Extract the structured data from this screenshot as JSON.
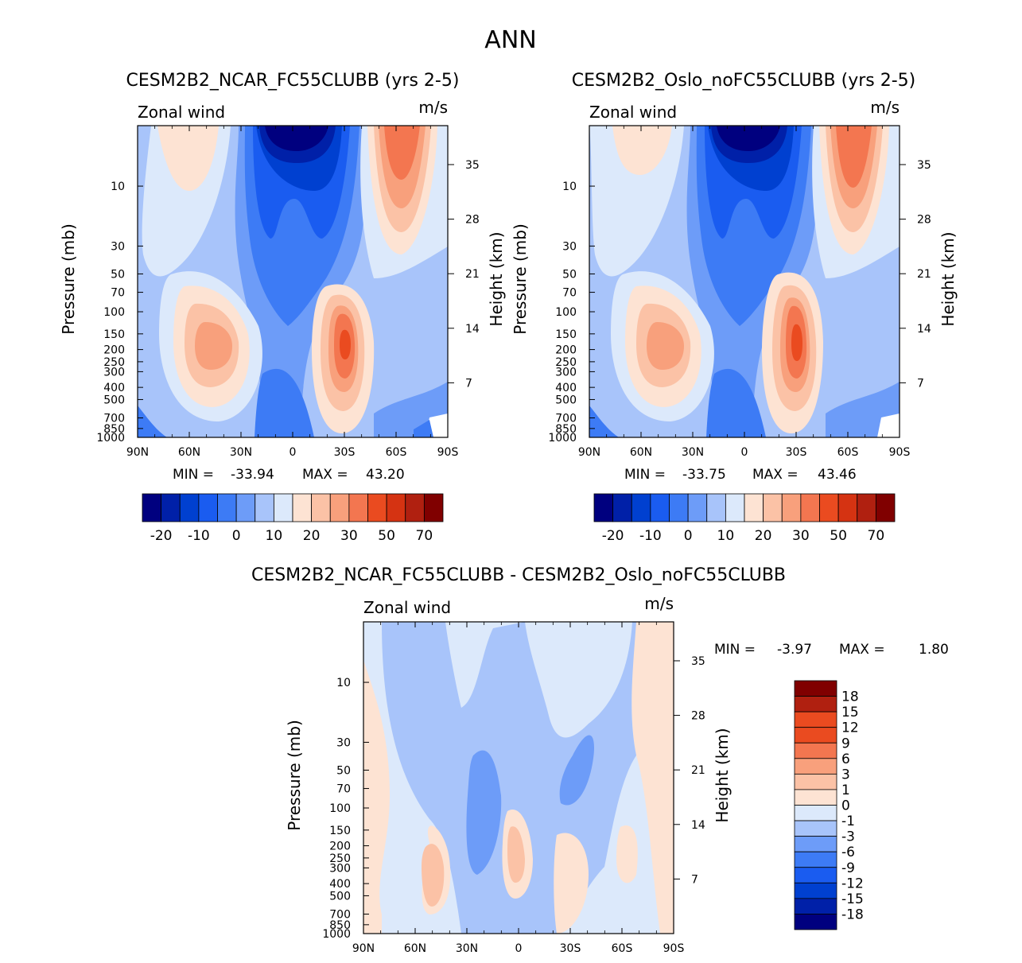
{
  "page_title": "ANN",
  "colors": {
    "main_scale": [
      "#00007f",
      "#0020a8",
      "#0040d0",
      "#1a5cf0",
      "#3d7bf5",
      "#6d9cf8",
      "#a8c4fa",
      "#dce9fb",
      "#fde3d3",
      "#fbc2a6",
      "#f8a07c",
      "#f37650",
      "#ea4b20",
      "#d53312",
      "#b02010",
      "#800000"
    ],
    "diff_scale": [
      "#00007f",
      "#0020a8",
      "#0040d0",
      "#1a5cf0",
      "#3d7bf5",
      "#6d9cf8",
      "#a8c4fa",
      "#dce9fb",
      "#fde3d3",
      "#fbc2a6",
      "#f8a07c",
      "#f37650",
      "#ea4b20",
      "#b02010",
      "#800000"
    ]
  },
  "chart_data": [
    {
      "type": "heatmap",
      "title": "CESM2B2_NCAR_FC55CLUBB (yrs 2-5)",
      "variable": "Zonal wind",
      "units": "m/s",
      "xlabel": "",
      "ylabel": "Pressure (mb)",
      "ylabel_right": "Height (km)",
      "x_ticks": [
        "90N",
        "60N",
        "30N",
        "0",
        "30S",
        "60S",
        "90S"
      ],
      "y_ticks": [
        "10",
        "30",
        "50",
        "70",
        "100",
        "150",
        "200",
        "250",
        "300",
        "400",
        "500",
        "700",
        "850",
        "1000"
      ],
      "y_ticks_right": [
        "35",
        "28",
        "21",
        "14",
        "7"
      ],
      "min_label": "MIN =",
      "min": "-33.94",
      "max_label": "MAX =",
      "max": "43.20",
      "colorbar_labels": [
        "-20",
        "-10",
        "0",
        "10",
        "20",
        "30",
        "50",
        "70"
      ]
    },
    {
      "type": "heatmap",
      "title": "CESM2B2_Oslo_noFC55CLUBB (yrs 2-5)",
      "variable": "Zonal wind",
      "units": "m/s",
      "xlabel": "",
      "ylabel": "Pressure (mb)",
      "ylabel_right": "Height (km)",
      "x_ticks": [
        "90N",
        "60N",
        "30N",
        "0",
        "30S",
        "60S",
        "90S"
      ],
      "y_ticks": [
        "10",
        "30",
        "50",
        "70",
        "100",
        "150",
        "200",
        "250",
        "300",
        "400",
        "500",
        "700",
        "850",
        "1000"
      ],
      "y_ticks_right": [
        "35",
        "28",
        "21",
        "14",
        "7"
      ],
      "min_label": "MIN =",
      "min": "-33.75",
      "max_label": "MAX =",
      "max": "43.46",
      "colorbar_labels": [
        "-20",
        "-10",
        "0",
        "10",
        "20",
        "30",
        "50",
        "70"
      ]
    },
    {
      "type": "heatmap",
      "title": "CESM2B2_NCAR_FC55CLUBB - CESM2B2_Oslo_noFC55CLUBB",
      "variable": "Zonal wind",
      "units": "m/s",
      "xlabel": "",
      "ylabel": "Pressure (mb)",
      "ylabel_right": "Height (km)",
      "x_ticks": [
        "90N",
        "60N",
        "30N",
        "0",
        "30S",
        "60S",
        "90S"
      ],
      "y_ticks": [
        "10",
        "30",
        "50",
        "70",
        "100",
        "150",
        "200",
        "250",
        "300",
        "400",
        "500",
        "700",
        "850",
        "1000"
      ],
      "y_ticks_right": [
        "35",
        "28",
        "21",
        "14",
        "7"
      ],
      "min_label": "MIN =",
      "min": "-3.97",
      "max_label": "MAX =",
      "max": "1.80",
      "colorbar_labels": [
        "18",
        "15",
        "12",
        "9",
        "6",
        "3",
        "1",
        "0",
        "-1",
        "-3",
        "-6",
        "-9",
        "-12",
        "-15",
        "-18"
      ]
    }
  ]
}
